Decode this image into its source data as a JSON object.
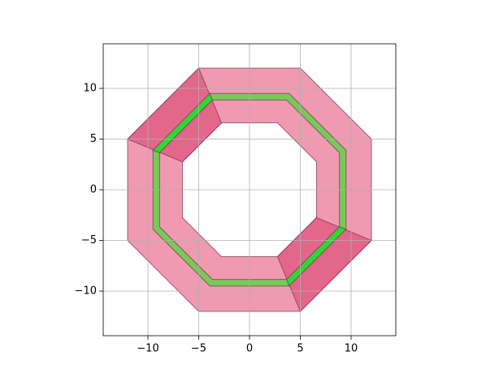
{
  "chart_data": {
    "type": "polygon",
    "xlim": [
      -14.4,
      14.4
    ],
    "ylim": [
      -14.4,
      14.4
    ],
    "xticks": [
      {
        "value": -10,
        "label": "−10"
      },
      {
        "value": -5,
        "label": "−5"
      },
      0,
      5,
      10
    ],
    "yticks": [
      {
        "value": -10,
        "label": "−10"
      },
      {
        "value": -5,
        "label": "−5"
      },
      0,
      5,
      10
    ],
    "grid": true,
    "polygons": [
      {
        "color": "#ef9ab0",
        "rings": [
          {
            "x": [
              -5,
              5,
              12,
              12,
              5,
              -5,
              -12,
              -12
            ],
            "y": [
              12,
              12,
              5,
              -5,
              -12,
              -12,
              -5,
              5
            ]
          },
          {
            "x": [
              -2.75,
              2.75,
              6.6,
              6.6,
              2.75,
              -2.75,
              -6.6,
              -6.6
            ],
            "y": [
              6.6,
              6.6,
              2.75,
              -2.75,
              -6.6,
              -6.6,
              -2.75,
              2.75
            ]
          }
        ]
      },
      {
        "color": "#78c85a",
        "rings": [
          {
            "x": [
              -3.9,
              3.9,
              9.5,
              9.5,
              3.9,
              -3.9,
              -9.5,
              -9.5
            ],
            "y": [
              9.5,
              9.5,
              3.9,
              -3.9,
              -9.5,
              -9.5,
              -3.9,
              3.9
            ]
          },
          {
            "x": [
              -3.65,
              3.65,
              8.85,
              8.85,
              3.65,
              -3.65,
              -8.85,
              -8.85
            ],
            "y": [
              8.85,
              8.85,
              3.65,
              -3.65,
              -8.85,
              -8.85,
              -3.65,
              3.65
            ]
          }
        ]
      },
      {
        "color": "#e3668b",
        "rings": [
          {
            "x": [
              -12,
              -5,
              -2.75,
              -6.6
            ],
            "y": [
              5,
              12,
              6.6,
              2.75
            ]
          }
        ]
      },
      {
        "color": "#e3668b",
        "rings": [
          {
            "x": [
              12,
              5,
              2.75,
              6.6
            ],
            "y": [
              -5,
              -12,
              -6.6,
              -2.75
            ]
          }
        ]
      },
      {
        "color": "#33d433",
        "rings": [
          {
            "x": [
              -9.5,
              -3.9,
              -3.65,
              -8.85
            ],
            "y": [
              3.9,
              9.5,
              8.85,
              3.65
            ]
          }
        ]
      },
      {
        "color": "#33d433",
        "rings": [
          {
            "x": [
              9.5,
              3.9,
              3.65,
              8.85
            ],
            "y": [
              -3.9,
              -9.5,
              -8.85,
              -3.65
            ]
          }
        ]
      }
    ]
  }
}
